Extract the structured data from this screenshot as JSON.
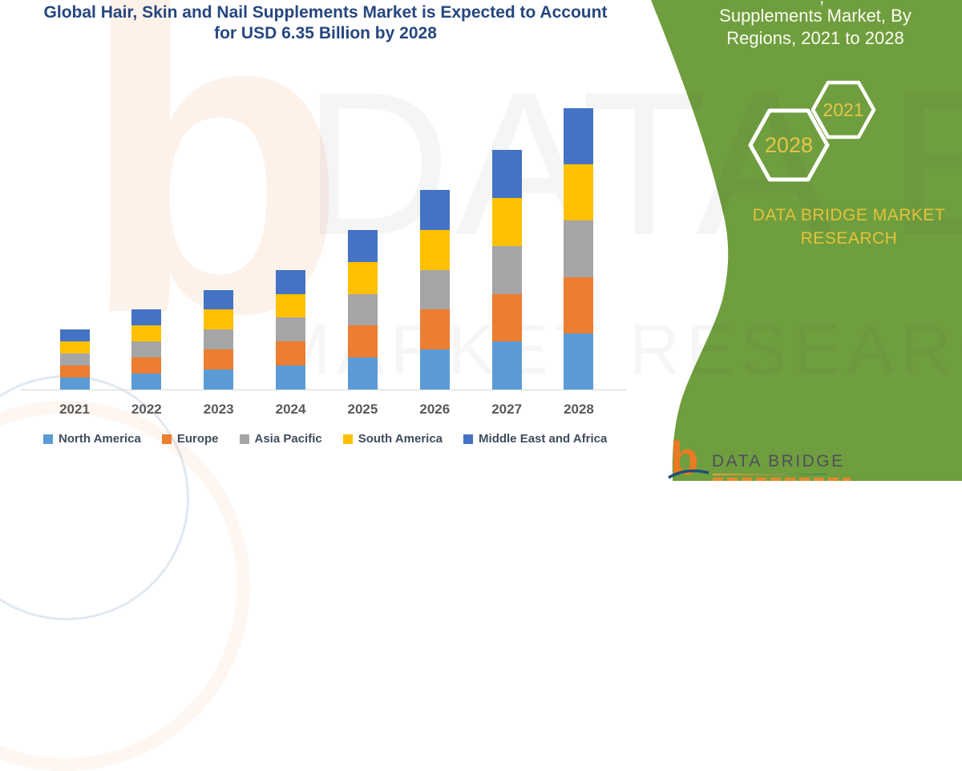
{
  "header": {
    "title_line1": "Global Hair, Skin and Nail Supplements Market is Expected to Account",
    "title_line2": "for USD 6.35 Billion by 2028",
    "color": "#26477F"
  },
  "chart_data": {
    "type": "bar",
    "stacked": true,
    "title": "Global Hair, Skin and Nail Supplements Market is Expected to Account for USD 6.35 Billion by 2028",
    "unit": "USD Billion",
    "categories": [
      "2021",
      "2022",
      "2023",
      "2024",
      "2025",
      "2026",
      "2027",
      "2028"
    ],
    "series": [
      {
        "name": "North America",
        "color": "#5B9BD5",
        "values": [
          0.27,
          0.36,
          0.45,
          0.54,
          0.72,
          0.9,
          1.08,
          1.27
        ]
      },
      {
        "name": "Europe",
        "color": "#ED7D31",
        "values": [
          0.27,
          0.36,
          0.45,
          0.54,
          0.72,
          0.9,
          1.08,
          1.27
        ]
      },
      {
        "name": "Asia Pacific",
        "color": "#A5A5A5",
        "values": [
          0.27,
          0.36,
          0.45,
          0.54,
          0.72,
          0.9,
          1.08,
          1.27
        ]
      },
      {
        "name": "South America",
        "color": "#FFC000",
        "values": [
          0.27,
          0.36,
          0.45,
          0.54,
          0.72,
          0.9,
          1.08,
          1.27
        ]
      },
      {
        "name": "Middle East and Africa",
        "color": "#4472C4",
        "values": [
          0.27,
          0.36,
          0.45,
          0.54,
          0.72,
          0.9,
          1.08,
          1.27
        ]
      }
    ],
    "totals_estimated": [
      1.35,
      1.8,
      2.25,
      2.7,
      3.6,
      4.5,
      5.4,
      6.35
    ],
    "highlight_value_2028": "USD 6.35 Billion",
    "legend_position": "bottom",
    "grid": false,
    "ylim": [
      0,
      6.6
    ],
    "xlabel": "",
    "ylabel": ""
  },
  "watermark": {
    "letter_b": "b",
    "line1": "DATA BRIDGE",
    "line2": "MARKET RESEARCH"
  },
  "panel": {
    "bg_color": "#6F9E3E",
    "top_fragment": ",",
    "title_line1": "Supplements Market, By",
    "title_line2": "Regions, 2021 to 2028",
    "hex_large_label": "2028",
    "hex_small_label": "2021",
    "accent_color": "#E5C648",
    "brand_line1": "DATA BRIDGE MARKET",
    "brand_line2": "RESEARCH"
  },
  "footer_logo": {
    "b": "b",
    "name": "DATA BRIDGE"
  }
}
